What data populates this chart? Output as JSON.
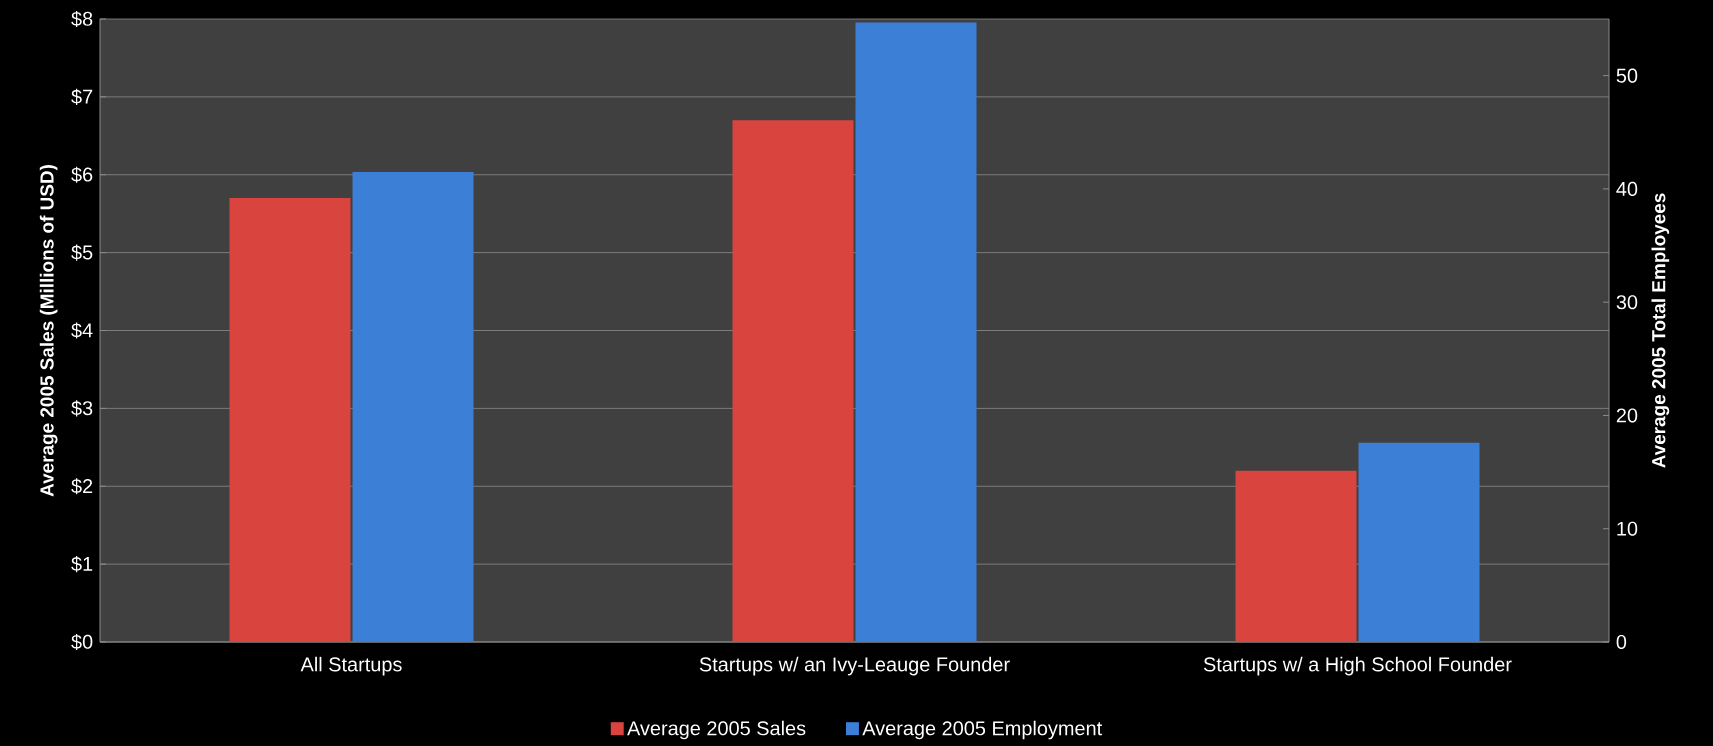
{
  "chart_data": {
    "type": "bar",
    "categories": [
      "All Startups",
      "Startups w/ an Ivy-Leauge Founder",
      "Startups w/ a High School Founder"
    ],
    "series": [
      {
        "name": "Average 2005 Sales",
        "color": "#d9443f",
        "values": [
          5.7,
          6.7,
          2.2
        ]
      },
      {
        "name": "Average 2005 Employment",
        "color": "#3c7fd6",
        "values": [
          41.5,
          54.7,
          17.6
        ],
        "axis": "y2"
      }
    ],
    "ylabel": "Average 2005 Sales (Millions of USD)",
    "y2label": "Average 2005 Total Employees",
    "ylim": [
      0,
      8
    ],
    "yticks": [
      {
        "value": 0,
        "label": "$0"
      },
      {
        "value": 1,
        "label": "$1"
      },
      {
        "value": 2,
        "label": "$2"
      },
      {
        "value": 3,
        "label": "$3"
      },
      {
        "value": 4,
        "label": "$4"
      },
      {
        "value": 5,
        "label": "$5"
      },
      {
        "value": 6,
        "label": "$6"
      },
      {
        "value": 7,
        "label": "$7"
      },
      {
        "value": 8,
        "label": "$8"
      }
    ],
    "y2lim": [
      0,
      55
    ],
    "y2ticks": [
      0,
      10,
      20,
      30,
      40,
      50
    ],
    "grid": "y",
    "legend": "bottom"
  }
}
